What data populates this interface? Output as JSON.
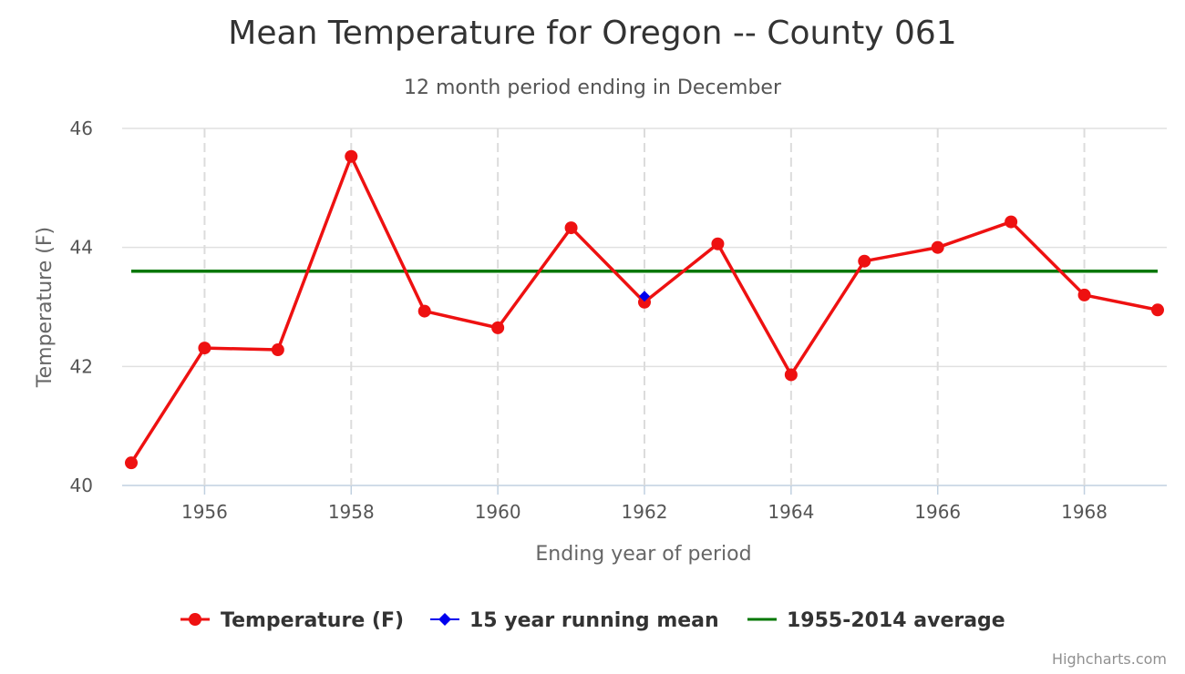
{
  "chart_data": {
    "type": "line",
    "title": "Mean Temperature for Oregon -- County 061",
    "subtitle": "12 month period ending in December",
    "xlabel": "Ending year of period",
    "ylabel": "Temperature (F)",
    "xlim": [
      1955,
      1969
    ],
    "ylim": [
      40,
      46
    ],
    "x_ticks": [
      "1956",
      "1958",
      "1960",
      "1962",
      "1964",
      "1966",
      "1968"
    ],
    "y_ticks": [
      "40",
      "42",
      "44",
      "46"
    ],
    "grid": true,
    "legend_position": "bottom",
    "series": [
      {
        "name": "Temperature (F)",
        "color": "#ee1111",
        "marker": "circle",
        "x": [
          1955,
          1956,
          1957,
          1958,
          1959,
          1960,
          1961,
          1962,
          1963,
          1964,
          1965,
          1966,
          1967,
          1968,
          1969
        ],
        "values": [
          40.38,
          42.31,
          42.28,
          45.53,
          42.93,
          42.65,
          44.33,
          43.08,
          44.06,
          41.86,
          43.77,
          44.0,
          44.43,
          43.2,
          42.95
        ]
      },
      {
        "name": "15 year running mean",
        "color": "#0000ee",
        "marker": "diamond",
        "x": [
          1962
        ],
        "values": [
          43.18
        ]
      },
      {
        "name": "1955-2014 average",
        "color": "#007700",
        "marker": "none",
        "x": [
          1955,
          1969
        ],
        "values": [
          43.6,
          43.6
        ]
      }
    ]
  },
  "credits": "Highcharts.com"
}
